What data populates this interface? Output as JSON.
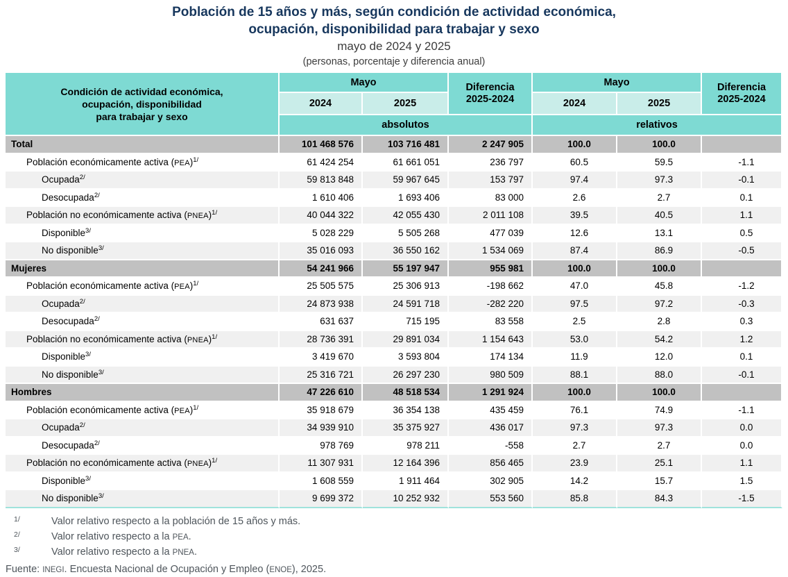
{
  "title": {
    "line1": "Población de 15 años y más, según condición de actividad económica,",
    "line2": "ocupación, disponibilidad para trabajar y sexo",
    "period": "mayo de 2024 y 2025",
    "units": "(personas, porcentaje y diferencia anual)"
  },
  "header": {
    "condition_line1": "Condición de actividad económica,",
    "condition_line2": "ocupación, disponibilidad",
    "condition_line3": "para trabajar y sexo",
    "mayo": "Mayo",
    "diferencia_line1": "Diferencia",
    "diferencia_line2": "2025-2024",
    "y2024": "2024",
    "y2025": "2025",
    "absolutos": "absolutos",
    "relativos": "relativos"
  },
  "chart_data": {
    "type": "table",
    "title": "Población de 15 años y más, según condición de actividad económica, ocupación, disponibilidad para trabajar y sexo",
    "subtitle": "mayo de 2024 y 2025",
    "units_note": "(personas, porcentaje y diferencia anual)",
    "columns": [
      "Mayo 2024 absolutos",
      "Mayo 2025 absolutos",
      "Diferencia 2025-2024 absolutos",
      "Mayo 2024 relativos",
      "Mayo 2025 relativos",
      "Diferencia 2025-2024 relativos"
    ],
    "rows": [
      {
        "pre": "Total",
        "acr": "",
        "post": "",
        "sup": "",
        "level": 0,
        "section": true,
        "values": [
          "101 468 576",
          "103 716 481",
          "2 247 905",
          "100.0",
          "100.0",
          ""
        ]
      },
      {
        "pre": "Población económicamente activa (",
        "acr": "PEA",
        "post": ")",
        "sup": "1/",
        "level": 1,
        "section": false,
        "values": [
          "61 424 254",
          "61 661 051",
          "236 797",
          "60.5",
          "59.5",
          "-1.1"
        ]
      },
      {
        "pre": "Ocupada",
        "acr": "",
        "post": "",
        "sup": "2/",
        "level": 2,
        "section": false,
        "values": [
          "59 813 848",
          "59 967 645",
          "153 797",
          "97.4",
          "97.3",
          "-0.1"
        ]
      },
      {
        "pre": "Desocupada",
        "acr": "",
        "post": "",
        "sup": "2/",
        "level": 2,
        "section": false,
        "values": [
          "1 610 406",
          "1 693 406",
          "83 000",
          "2.6",
          "2.7",
          "0.1"
        ]
      },
      {
        "pre": "Población no económicamente activa (",
        "acr": "PNEA",
        "post": ")",
        "sup": "1/",
        "level": 1,
        "section": false,
        "values": [
          "40 044 322",
          "42 055 430",
          "2 011 108",
          "39.5",
          "40.5",
          "1.1"
        ]
      },
      {
        "pre": "Disponible",
        "acr": "",
        "post": "",
        "sup": "3/",
        "level": 2,
        "section": false,
        "values": [
          "5 028 229",
          "5 505 268",
          "477 039",
          "12.6",
          "13.1",
          "0.5"
        ]
      },
      {
        "pre": "No disponible",
        "acr": "",
        "post": "",
        "sup": "3/",
        "level": 2,
        "section": false,
        "values": [
          "35 016 093",
          "36 550 162",
          "1 534 069",
          "87.4",
          "86.9",
          "-0.5"
        ]
      },
      {
        "pre": "Mujeres",
        "acr": "",
        "post": "",
        "sup": "",
        "level": 0,
        "section": true,
        "values": [
          "54 241 966",
          "55 197 947",
          "955 981",
          "100.0",
          "100.0",
          ""
        ]
      },
      {
        "pre": "Población económicamente activa (",
        "acr": "PEA",
        "post": ")",
        "sup": "1/",
        "level": 1,
        "section": false,
        "values": [
          "25 505 575",
          "25 306 913",
          "-198 662",
          "47.0",
          "45.8",
          "-1.2"
        ]
      },
      {
        "pre": "Ocupada",
        "acr": "",
        "post": "",
        "sup": "2/",
        "level": 2,
        "section": false,
        "values": [
          "24 873 938",
          "24 591 718",
          "-282 220",
          "97.5",
          "97.2",
          "-0.3"
        ]
      },
      {
        "pre": "Desocupada",
        "acr": "",
        "post": "",
        "sup": "2/",
        "level": 2,
        "section": false,
        "values": [
          "631 637",
          "715 195",
          "83 558",
          "2.5",
          "2.8",
          "0.3"
        ]
      },
      {
        "pre": "Población no económicamente activa (",
        "acr": "PNEA",
        "post": ")",
        "sup": "1/",
        "level": 1,
        "section": false,
        "values": [
          "28 736 391",
          "29 891 034",
          "1 154 643",
          "53.0",
          "54.2",
          "1.2"
        ]
      },
      {
        "pre": "Disponible",
        "acr": "",
        "post": "",
        "sup": "3/",
        "level": 2,
        "section": false,
        "values": [
          "3 419 670",
          "3 593 804",
          "174 134",
          "11.9",
          "12.0",
          "0.1"
        ]
      },
      {
        "pre": "No disponible",
        "acr": "",
        "post": "",
        "sup": "3/",
        "level": 2,
        "section": false,
        "values": [
          "25 316 721",
          "26 297 230",
          "980 509",
          "88.1",
          "88.0",
          "-0.1"
        ]
      },
      {
        "pre": "Hombres",
        "acr": "",
        "post": "",
        "sup": "",
        "level": 0,
        "section": true,
        "values": [
          "47 226 610",
          "48 518 534",
          "1 291 924",
          "100.0",
          "100.0",
          ""
        ]
      },
      {
        "pre": "Población económicamente activa (",
        "acr": "PEA",
        "post": ")",
        "sup": "1/",
        "level": 1,
        "section": false,
        "values": [
          "35 918 679",
          "36 354 138",
          "435 459",
          "76.1",
          "74.9",
          "-1.1"
        ]
      },
      {
        "pre": "Ocupada",
        "acr": "",
        "post": "",
        "sup": "2/",
        "level": 2,
        "section": false,
        "values": [
          "34 939 910",
          "35 375 927",
          "436 017",
          "97.3",
          "97.3",
          "0.0"
        ]
      },
      {
        "pre": "Desocupada",
        "acr": "",
        "post": "",
        "sup": "2/",
        "level": 2,
        "section": false,
        "values": [
          "978 769",
          "978 211",
          "-558",
          "2.7",
          "2.7",
          "0.0"
        ]
      },
      {
        "pre": "Población no económicamente activa (",
        "acr": "PNEA",
        "post": ")",
        "sup": "1/",
        "level": 1,
        "section": false,
        "values": [
          "11 307 931",
          "12 164 396",
          "856 465",
          "23.9",
          "25.1",
          "1.1"
        ]
      },
      {
        "pre": "Disponible",
        "acr": "",
        "post": "",
        "sup": "3/",
        "level": 2,
        "section": false,
        "values": [
          "1 608 559",
          "1 911 464",
          "302 905",
          "14.2",
          "15.7",
          "1.5"
        ]
      },
      {
        "pre": "No disponible",
        "acr": "",
        "post": "",
        "sup": "3/",
        "level": 2,
        "section": false,
        "values": [
          "9 699 372",
          "10 252 932",
          "553 560",
          "85.8",
          "84.3",
          "-1.5"
        ]
      }
    ]
  },
  "footnotes": [
    {
      "marker": "1/",
      "pre": "Valor relativo respecto a la población de 15 años y más.",
      "acr": "",
      "post": ""
    },
    {
      "marker": "2/",
      "pre": "Valor relativo respecto a la ",
      "acr": "PEA",
      "post": "."
    },
    {
      "marker": "3/",
      "pre": "Valor relativo respecto a la ",
      "acr": "PNEA",
      "post": "."
    }
  ],
  "source": {
    "label": "Fuente: ",
    "org": "INEGI",
    "mid": ". Encuesta Nacional de Ocupación y Empleo (",
    "acr": "ENOE",
    "post": "), 2025."
  },
  "colors": {
    "header_teal": "#7EDAD3",
    "header_teal_light": "#C9EDE9",
    "section_row_gray": "#C1C1C1",
    "alt_row_gray": "#F0F0F0",
    "title_navy": "#17375D",
    "footnote_gray": "#4E555B"
  }
}
